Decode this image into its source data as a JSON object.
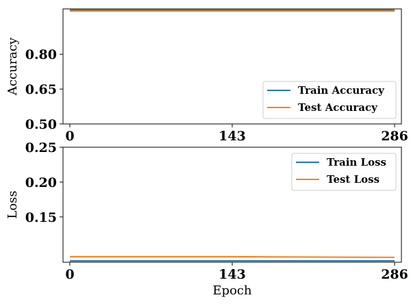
{
  "chart_data": [
    {
      "type": "line",
      "title": "",
      "xlabel": "",
      "ylabel": "Accuracy",
      "xlim": [
        -6,
        292
      ],
      "ylim": [
        0.5,
        0.995
      ],
      "x_ticks": [
        "0",
        "143",
        "286"
      ],
      "y_ticks": [
        "0.50",
        "0.65",
        "0.80"
      ],
      "legend_position": "bottom-right",
      "series": [
        {
          "name": "Train Accuracy",
          "color": "#1f77b4",
          "x": [
            0,
            143,
            286
          ],
          "y": [
            0.99,
            0.99,
            0.99
          ]
        },
        {
          "name": "Test Accuracy",
          "color": "#ff7f0e",
          "x": [
            0,
            143,
            286
          ],
          "y": [
            0.986,
            0.986,
            0.986
          ]
        }
      ]
    },
    {
      "type": "line",
      "title": "",
      "xlabel": "Epoch",
      "ylabel": "Loss",
      "xlim": [
        -6,
        292
      ],
      "ylim": [
        0.085,
        0.25
      ],
      "x_ticks": [
        "0",
        "143",
        "286"
      ],
      "y_ticks": [
        "0.15",
        "0.20",
        "0.25"
      ],
      "legend_position": "top-right",
      "series": [
        {
          "name": "Train Loss",
          "color": "#1f77b4",
          "x": [
            0,
            143,
            286
          ],
          "y": [
            0.087,
            0.087,
            0.087
          ]
        },
        {
          "name": "Test Loss",
          "color": "#ff7f0e",
          "x": [
            0,
            143,
            286
          ],
          "y": [
            0.093,
            0.093,
            0.092
          ]
        }
      ]
    }
  ]
}
